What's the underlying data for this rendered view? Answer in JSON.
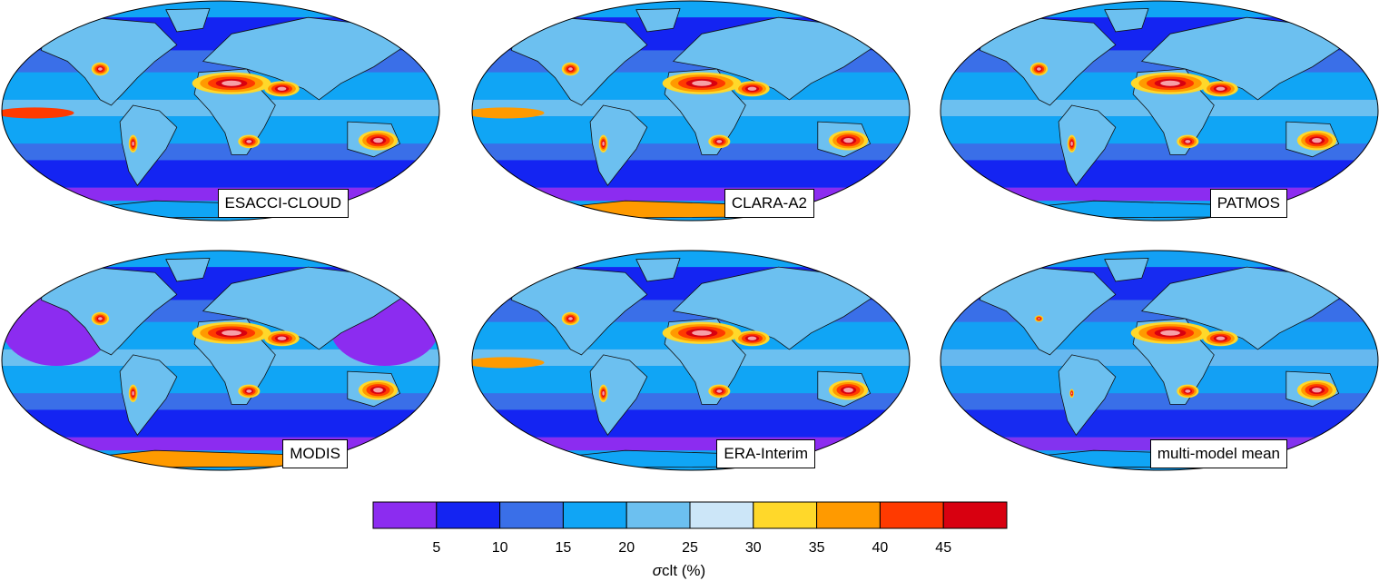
{
  "figure": {
    "panels": [
      {
        "label": "ESACCI-CLOUD"
      },
      {
        "label": "CLARA-A2"
      },
      {
        "label": "PATMOS"
      },
      {
        "label": "MODIS"
      },
      {
        "label": "ERA-Interim"
      },
      {
        "label": "multi-model mean"
      }
    ],
    "colorbar": {
      "colors": [
        "#8c2cf0",
        "#1424f2",
        "#3a6fe8",
        "#10a5f5",
        "#6cc0f0",
        "#cce6f8",
        "#ffd82a",
        "#ff9a00",
        "#ff3a00",
        "#d80010"
      ],
      "ticks": [
        "5",
        "10",
        "15",
        "20",
        "25",
        "30",
        "35",
        "40",
        "45"
      ],
      "title_symbol": "σ",
      "title_text": "clt (%)"
    }
  }
}
